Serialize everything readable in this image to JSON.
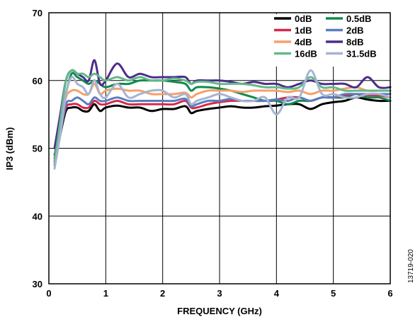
{
  "chart_data": {
    "type": "line",
    "title": "",
    "xlabel": "FREQUENCY (GHz)",
    "ylabel": "IP3 (dBm)",
    "xlim": [
      0,
      6
    ],
    "ylim": [
      30,
      70
    ],
    "x_ticks": [
      "0",
      "1",
      "2",
      "3",
      "4",
      "5",
      "6"
    ],
    "y_ticks": [
      "30",
      "40",
      "50",
      "60",
      "70"
    ],
    "grid": true,
    "legend_position": "top-right",
    "figure_id": "13719-020",
    "x": [
      0.1,
      0.2,
      0.3,
      0.4,
      0.5,
      0.6,
      0.7,
      0.8,
      0.9,
      1.0,
      1.2,
      1.4,
      1.6,
      1.8,
      2.0,
      2.2,
      2.4,
      2.5,
      2.6,
      2.8,
      3.0,
      3.2,
      3.4,
      3.6,
      3.8,
      4.0,
      4.2,
      4.4,
      4.6,
      4.8,
      5.0,
      5.2,
      5.4,
      5.6,
      5.8,
      6.0
    ],
    "series": [
      {
        "name": "0dB",
        "color": "#000000",
        "values": [
          48,
          52,
          55.5,
          56,
          56,
          55.5,
          55.5,
          56.5,
          55.5,
          56,
          56.3,
          56,
          56,
          55.5,
          55.8,
          55.8,
          56.2,
          55.2,
          55.5,
          55.8,
          56,
          56.2,
          56,
          56,
          56.2,
          56.3,
          56.5,
          56.5,
          55.8,
          56.5,
          56.8,
          57,
          57.5,
          57.2,
          57,
          57
        ]
      },
      {
        "name": "0.5dB",
        "color": "#0f8a4e",
        "values": [
          49,
          53,
          58,
          61,
          60.5,
          60,
          59.5,
          60,
          59.5,
          59,
          59.5,
          59.5,
          60,
          60,
          60,
          59.8,
          59.5,
          58.5,
          59,
          59,
          58.8,
          58.5,
          58,
          57.5,
          57,
          57,
          56.5,
          57,
          57,
          57.5,
          57.5,
          57.5,
          58,
          57.5,
          57.5,
          57
        ]
      },
      {
        "name": "1dB",
        "color": "#d42a4a",
        "values": [
          48.5,
          52.5,
          56,
          56.5,
          56.5,
          56,
          56,
          57,
          56.5,
          56.5,
          57,
          56.5,
          56.5,
          56.5,
          56.5,
          56.5,
          57,
          56,
          56,
          56.5,
          56.8,
          57,
          57,
          57,
          57,
          57.2,
          57.5,
          57.5,
          57,
          57.5,
          57.5,
          57.8,
          58,
          57.8,
          57.8,
          57.5
        ]
      },
      {
        "name": "2dB",
        "color": "#5a7dbf",
        "values": [
          47.5,
          52,
          56.5,
          57,
          57.5,
          57,
          56.5,
          57.5,
          57,
          57,
          57.5,
          57,
          57,
          57,
          57,
          57,
          57.3,
          56.2,
          56.5,
          57,
          57,
          57.3,
          57,
          57,
          57,
          57.2,
          57,
          57.5,
          57,
          57.5,
          57.5,
          58,
          58,
          58,
          58,
          58
        ]
      },
      {
        "name": "4dB",
        "color": "#f7a069",
        "values": [
          48,
          53,
          57.5,
          58.5,
          58.5,
          58,
          58,
          59.5,
          58,
          58.5,
          58.8,
          58.5,
          58.5,
          58,
          58,
          58,
          58.2,
          57.5,
          58,
          58.5,
          58.5,
          58.5,
          58.3,
          58.5,
          58.5,
          58.5,
          58.3,
          58.5,
          58,
          58.5,
          58.5,
          58.8,
          59,
          58.5,
          58.5,
          58.5
        ]
      },
      {
        "name": "8dB",
        "color": "#4e2d8a",
        "values": [
          50,
          55,
          60,
          61.5,
          61,
          60.5,
          60,
          63,
          59.5,
          60,
          62.5,
          60.5,
          61,
          60.5,
          60.5,
          60.5,
          60.5,
          59.5,
          60,
          60,
          60,
          59.8,
          59.5,
          59.8,
          59.5,
          59.5,
          59,
          59.5,
          60,
          59.5,
          59.5,
          59.5,
          59,
          60.5,
          59,
          59
        ]
      },
      {
        "name": "16dB",
        "color": "#63b98a",
        "values": [
          48,
          54,
          60,
          61.5,
          61,
          61,
          60.5,
          61,
          60.5,
          60,
          60.5,
          60,
          60.5,
          60,
          60,
          60.3,
          60,
          59.5,
          59.8,
          59.8,
          59.5,
          59.5,
          59.5,
          59.3,
          59,
          59,
          58.8,
          59,
          60.5,
          59,
          59,
          58.5,
          58.5,
          58.5,
          58.5,
          58.5
        ]
      },
      {
        "name": "31.5dB",
        "color": "#a6b4d2",
        "values": [
          47,
          52,
          58,
          60.5,
          59.5,
          59,
          58,
          60,
          58,
          57.5,
          59.5,
          57.5,
          58,
          58.5,
          58.5,
          57.5,
          58,
          56.5,
          57,
          57.5,
          58,
          57.5,
          57,
          57,
          57.5,
          55,
          57.5,
          57.5,
          61.5,
          58,
          58,
          57.5,
          57.5,
          58,
          58,
          57.5
        ]
      }
    ]
  }
}
